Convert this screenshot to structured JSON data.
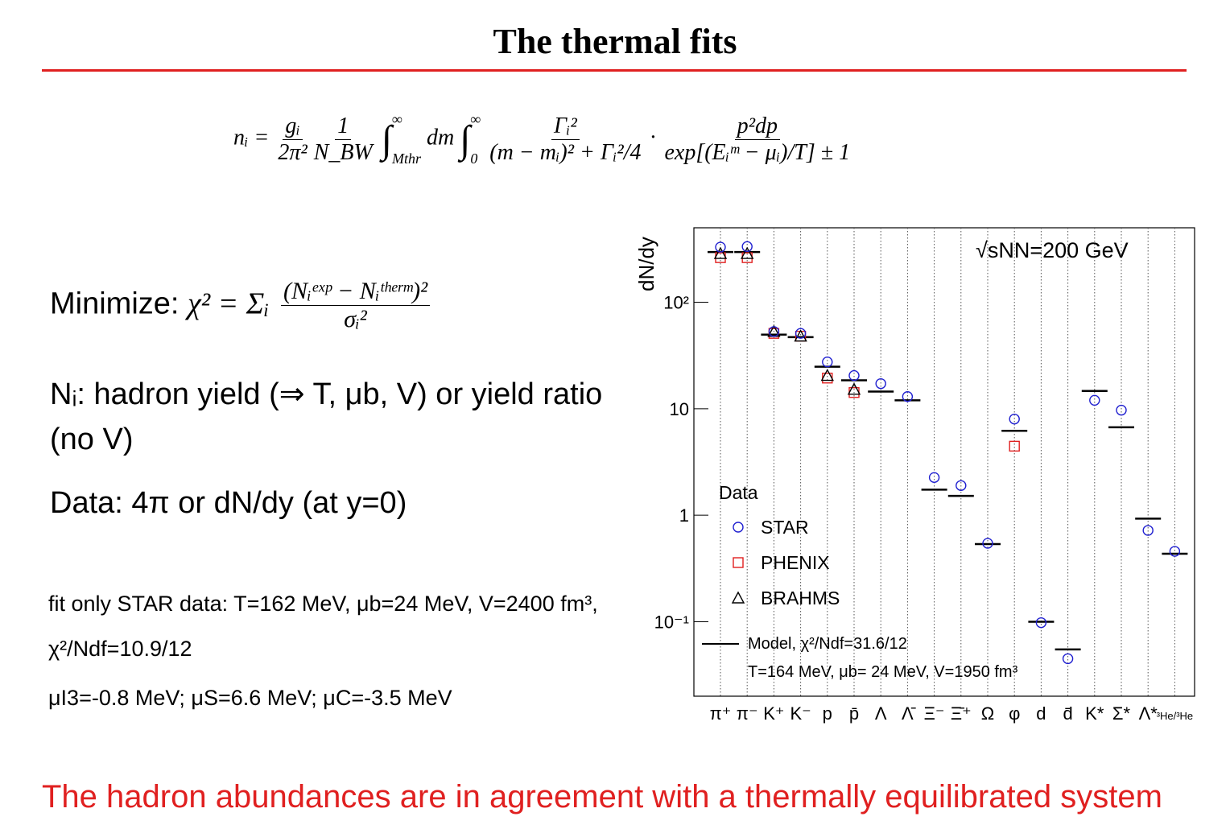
{
  "title": "The thermal fits",
  "formula": {
    "lhs": "nᵢ =",
    "frac1": {
      "num": "gᵢ",
      "den": "2π²"
    },
    "frac2": {
      "num": "1",
      "den": "N_BW"
    },
    "int1": {
      "sign": "∫",
      "upper": "∞",
      "lower": "Mthr"
    },
    "dm": "dm",
    "int2": {
      "sign": "∫",
      "upper": "∞",
      "lower": "0"
    },
    "frac3": {
      "num": "Γᵢ²",
      "den": "(m − mᵢ)² + Γᵢ²/4"
    },
    "dot": "·",
    "frac4": {
      "num": "p²dp",
      "den": "exp[(Eᵢᵐ − μᵢ)/T] ± 1"
    }
  },
  "minimize": {
    "label": "Minimize:",
    "lhs": "χ² = Σᵢ",
    "num": "(Nᵢᵉˣᵖ − Nᵢᵗʰᵉʳᵐ)²",
    "den": "σᵢ²"
  },
  "bullets": [
    "Nᵢ: hadron yield (⇒ T, μb, V) or yield ratio (no V)",
    "Data: 4π or dN/dy (at y=0)"
  ],
  "notes": [
    "fit only STAR data: T=162 MeV, μb=24 MeV, V=2400 fm³, χ²/Ndf=10.9/12",
    "μI3=-0.8 MeV; μS=6.6 MeV; μC=-3.5 MeV"
  ],
  "footer": "The hadron abundances are in agreement with a thermally equilibrated system",
  "chart_data": {
    "type": "scatter",
    "y_label": "dN/dy",
    "annotation": "√sNN=200 GeV",
    "log_y": true,
    "ylim": [
      0.02,
      500
    ],
    "yticks": [
      {
        "value": 0.1,
        "label": "10⁻¹"
      },
      1,
      10,
      {
        "value": 100,
        "label": "10²"
      }
    ],
    "legend_title": "Data",
    "model_note": "T=164 MeV, μb= 24 MeV, V=1950 fm³",
    "categories": [
      "π⁺",
      "π⁻",
      "K⁺",
      "K⁻",
      "p",
      "p̄",
      "Λ",
      "Λ̄",
      "Ξ⁻",
      "Ξ̄⁺",
      "Ω",
      "φ",
      "d",
      "d̄",
      "K*",
      "Σ*",
      "Λ*",
      "³He/³He"
    ],
    "series": [
      {
        "name": "STAR",
        "marker": "circle",
        "color": "#2020d0",
        "values": [
          329,
          333,
          53,
          51,
          27.5,
          20.5,
          17.2,
          13,
          2.26,
          1.9,
          0.545,
          8.0,
          0.098,
          0.045,
          12,
          9.7,
          0.72,
          0.458
        ]
      },
      {
        "name": "PHENIX",
        "marker": "square",
        "color": "#e02020",
        "values": [
          262,
          262,
          51,
          48,
          19.4,
          14.2,
          null,
          null,
          null,
          null,
          null,
          4.45,
          null,
          null,
          null,
          null,
          null,
          null
        ]
      },
      {
        "name": "BRAHMS",
        "marker": "triangle",
        "color": "#000000",
        "values": [
          286,
          286,
          53,
          48,
          20.5,
          15.2,
          null,
          null,
          null,
          null,
          null,
          null,
          null,
          null,
          null,
          null,
          null,
          null
        ]
      },
      {
        "name": "Model, χ²/Ndf=31.6/12",
        "marker": "line",
        "color": "#000000",
        "values": [
          296,
          296,
          49.6,
          47,
          24.8,
          18.5,
          14.5,
          12,
          1.74,
          1.52,
          0.536,
          6.2,
          0.1,
          0.055,
          14.7,
          6.7,
          0.93,
          0.435
        ]
      }
    ]
  }
}
